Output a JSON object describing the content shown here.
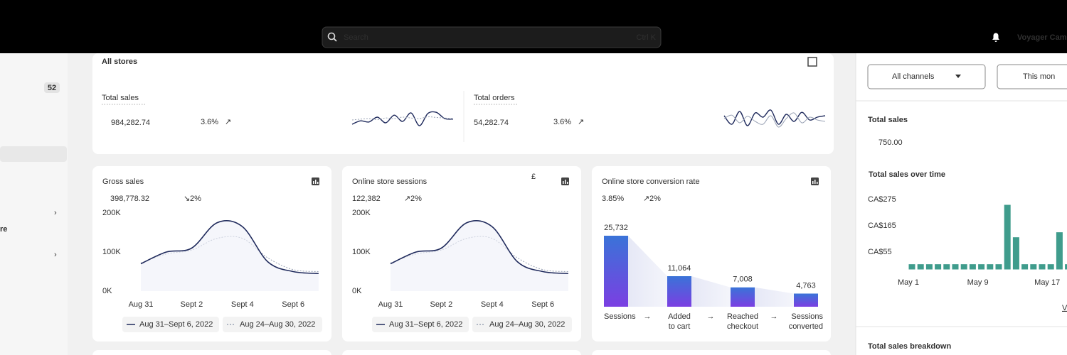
{
  "topbar": {
    "search_placeholder": "Search",
    "shortcut": "Ctrl K",
    "user": "Voyager Came"
  },
  "sidebar": {
    "badge": "52",
    "item": "re"
  },
  "header": {
    "title": "All stores"
  },
  "summary": [
    {
      "label": "Total sales",
      "value": "984,282.74",
      "change": "3.6%",
      "series": [
        {
          "color": "#1f2a5c",
          "values": [
            30,
            42,
            38,
            55,
            35,
            62,
            40,
            70,
            25,
            68,
            72,
            50,
            48
          ]
        },
        {
          "color": "#9aa3b5",
          "dashed": true,
          "values": [
            45,
            48,
            50,
            46,
            52,
            50,
            55,
            52,
            50,
            56,
            54,
            52,
            50
          ]
        }
      ]
    },
    {
      "label": "Total orders",
      "value": "54,282.74",
      "change": "3.6%",
      "series": [
        {
          "color": "#1f2a5c",
          "values": [
            60,
            30,
            75,
            25,
            70,
            55,
            80,
            30,
            65,
            40,
            72,
            45,
            55,
            60
          ]
        },
        {
          "color": "#9aa3b5",
          "values": [
            50,
            62,
            35,
            58,
            40,
            30,
            60,
            20,
            50,
            70,
            35,
            55,
            45,
            40
          ]
        }
      ]
    }
  ],
  "cards": [
    {
      "title": "Gross sales",
      "value": "398,778.32",
      "change": "2%",
      "change_color": "#b3261e",
      "ylim": [
        0,
        200
      ],
      "yticks": [
        {
          "value": 0,
          "label": "0K"
        },
        {
          "value": 100,
          "label": "100K"
        },
        {
          "value": 200,
          "label": "200K"
        }
      ],
      "categories": [
        "Aug 31",
        null,
        "Sept 2",
        null,
        "Sept 4",
        null,
        "Sept 6",
        null
      ],
      "series": [
        {
          "name": "Aug 31–Sept 6, 2022",
          "color": "#1f2a5c",
          "values": [
            70,
            100,
            110,
            175,
            165,
            75,
            50,
            45
          ]
        },
        {
          "name": "Aug 24–Aug 30, 2022",
          "color": "#9aa3b5",
          "dashed": true,
          "values": [
            72,
            95,
            105,
            135,
            135,
            85,
            55,
            50
          ]
        }
      ]
    },
    {
      "title": "Online store sessions",
      "value": "122,382",
      "change": "2%",
      "change_color": "#2b7a5e",
      "symbol": "£",
      "ylim": [
        0,
        200
      ],
      "yticks": [
        {
          "value": 0,
          "label": "0K"
        },
        {
          "value": 100,
          "label": "100K"
        },
        {
          "value": 200,
          "label": "200K"
        }
      ],
      "categories": [
        "Aug 31",
        null,
        "Sept 2",
        null,
        "Sept 4",
        null,
        "Sept 6",
        null
      ],
      "series": [
        {
          "name": "Aug 31–Sept 6, 2022",
          "color": "#1f2a5c",
          "values": [
            70,
            100,
            110,
            175,
            165,
            75,
            50,
            45
          ]
        },
        {
          "name": "Aug 24–Aug 30, 2022",
          "color": "#9aa3b5",
          "dashed": true,
          "values": [
            72,
            95,
            105,
            135,
            135,
            85,
            55,
            50
          ]
        }
      ]
    }
  ],
  "funnel": {
    "title": "Online store conversion rate",
    "value": "3.85%",
    "change": "2%",
    "change_color": "#2b7a5e",
    "stages": [
      {
        "label": [
          "Sessions"
        ],
        "value": 25732,
        "value_label": "25,732"
      },
      {
        "label": [
          "Added",
          "to cart"
        ],
        "value": 11064,
        "value_label": "11,064"
      },
      {
        "label": [
          "Reached",
          "checkout"
        ],
        "value": 7008,
        "value_label": "7,008"
      },
      {
        "label": [
          "Sessions",
          "converted"
        ],
        "value": 4763,
        "value_label": "4,763"
      }
    ]
  },
  "panel": {
    "filters": [
      "All channels",
      "This mon"
    ],
    "total_label": "Total sales",
    "total_value": "750.00",
    "chart": {
      "title": "Total sales over time",
      "color": "#3f9c8c",
      "ylim": [
        0,
        300
      ],
      "yticks": [
        {
          "value": 55,
          "label": "CA$55"
        },
        {
          "value": 165,
          "label": "CA$165"
        },
        {
          "value": 275,
          "label": "CA$275"
        }
      ],
      "categories": [
        "May 1",
        null,
        null,
        null,
        null,
        null,
        null,
        null,
        "May 9",
        null,
        null,
        null,
        null,
        null,
        null,
        null,
        "May 17",
        null,
        null
      ],
      "values": [
        4,
        4,
        4,
        4,
        4,
        4,
        4,
        4,
        4,
        4,
        4,
        253,
        117,
        4,
        4,
        4,
        4,
        138,
        4
      ]
    },
    "link": "V",
    "breakdown": "Total sales breakdown"
  }
}
